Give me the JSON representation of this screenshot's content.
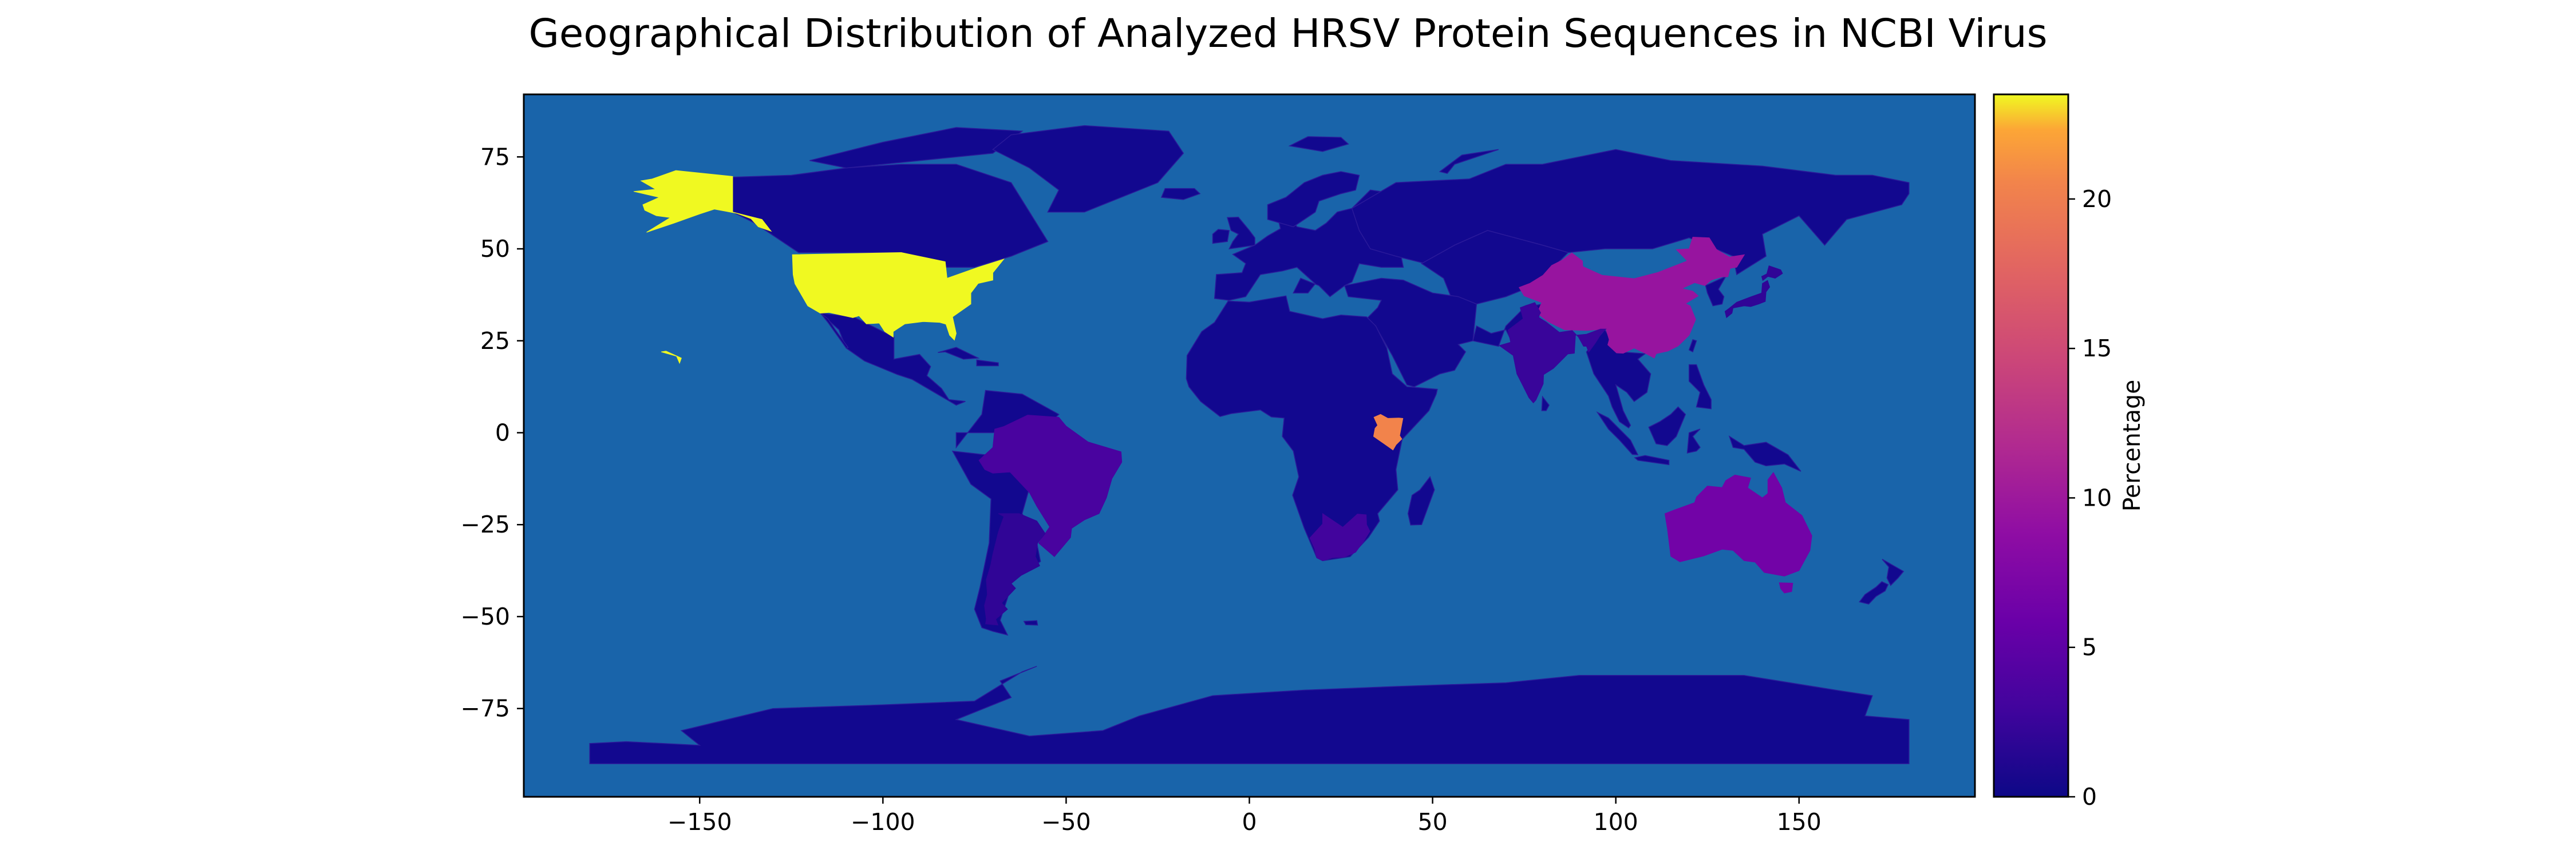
{
  "title": "Geographical Distribution of Analyzed HRSV Protein Sequences in NCBI Virus",
  "colorbar": {
    "label": "Percentage",
    "ticks": [
      "0",
      "5",
      "10",
      "15",
      "20"
    ],
    "range": [
      0,
      23.5
    ],
    "colormap": "plasma"
  },
  "colors": {
    "ocean": "#1964aa",
    "land_low": "#12088f",
    "edge": "#2a1a9a"
  },
  "chart_data": {
    "type": "choropleth",
    "title": "Geographical Distribution of Analyzed HRSV Protein Sequences in NCBI Virus",
    "colorbar_label": "Percentage",
    "xlim": [
      -198,
      198
    ],
    "ylim": [
      -99,
      92
    ],
    "xticks": [
      "−150",
      "−100",
      "−50",
      "0",
      "50",
      "100",
      "150"
    ],
    "yticks": [
      "75",
      "50",
      "25",
      "0",
      "−25",
      "−50",
      "−75"
    ],
    "series": [
      {
        "region": "United States",
        "value": 23.5
      },
      {
        "region": "Kenya",
        "value": 20.5
      },
      {
        "region": "China",
        "value": 9.5
      },
      {
        "region": "Australia",
        "value": 6.5
      },
      {
        "region": "Brazil",
        "value": 3.5
      },
      {
        "region": "South Africa",
        "value": 3.0
      },
      {
        "region": "India",
        "value": 2.5
      },
      {
        "region": "Argentina",
        "value": 2.0
      },
      {
        "region": "Japan",
        "value": 2.0
      },
      {
        "region": "Other countries",
        "value": 0.5
      }
    ]
  }
}
